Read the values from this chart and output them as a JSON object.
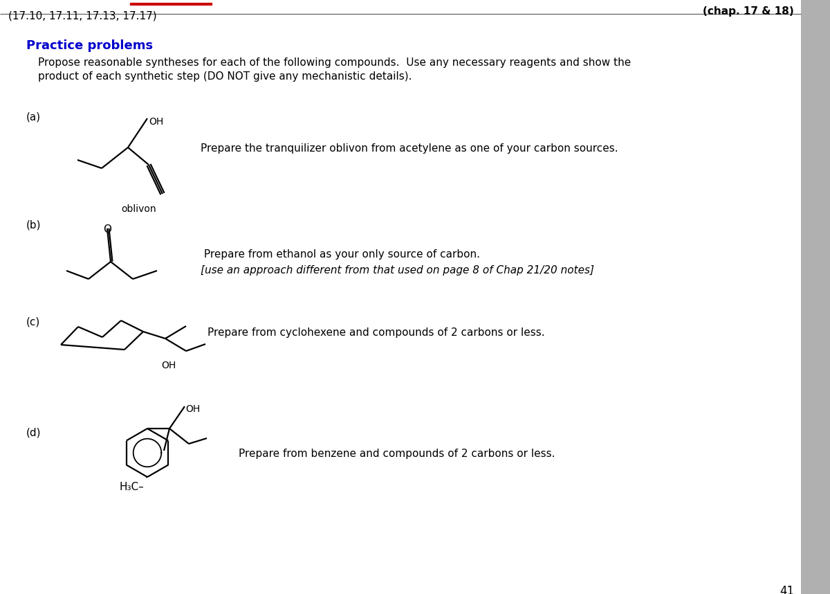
{
  "top_left_text": "(17.10, 17.11, 17.13, 17.17)",
  "top_right_text": "(chap. 17 & 18)",
  "section_header": "Practice problems",
  "intro_line1": "Propose reasonable syntheses for each of the following compounds.  Use any necessary reagents and show the",
  "intro_line2": "product of each synthetic step (DO NOT give any mechanistic details).",
  "label_a": "(a)",
  "label_b": "(b)",
  "label_c": "(c)",
  "label_d": "(d)",
  "oblivon_label": "oblivon",
  "instr_a": "Prepare the tranquilizer oblivon from acetylene as one of your carbon sources.",
  "instr_b1": " Prepare from ethanol as your only source of carbon.",
  "instr_b2": "[use an approach different from that used on page 8 of Chap 21/20 notes]",
  "instr_c": "Prepare from cyclohexene and compounds of 2 carbons or less.",
  "instr_d": "Prepare from benzene and compounds of 2 carbons or less.",
  "page_num": "41",
  "bg_color": "#ffffff",
  "text_color": "#000000",
  "header_color": "#0000cc",
  "sidebar_color": "#b0b0b0",
  "red_line_color": "#cc0000",
  "lw": 1.6
}
